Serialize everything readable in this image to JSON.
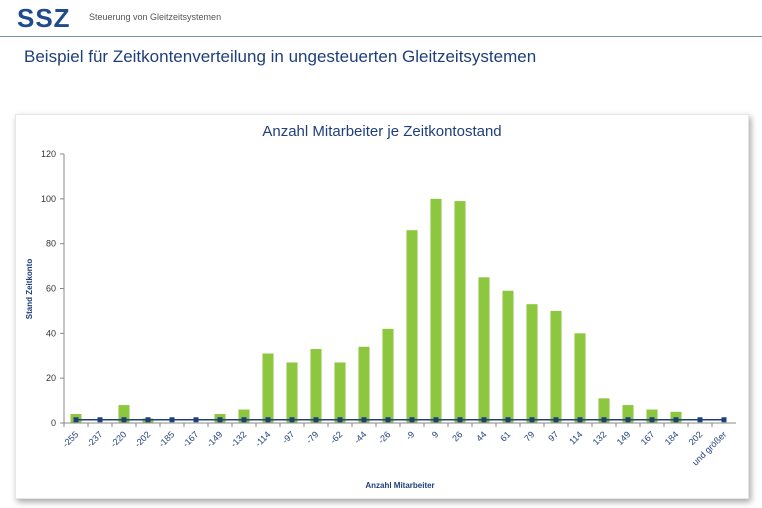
{
  "header": {
    "logo": "SSZ",
    "company": "Steuerung von Gleitzeitsystemen",
    "title": "Beispiel für Zeitkontenverteilung in ungesteuerten Gleitzeitsystemen"
  },
  "chart_data": {
    "type": "bar",
    "title": "Anzahl Mitarbeiter je Zeitkontostand",
    "xlabel": "Anzahl Mitarbeiter",
    "ylabel": "Stand Zeitkonto",
    "ylim": [
      0,
      120
    ],
    "yticks": [
      0,
      20,
      40,
      60,
      80,
      100,
      120
    ],
    "grid": false,
    "legend": "none",
    "categories": [
      "-255",
      "-237",
      "-220",
      "-202",
      "-185",
      "-167",
      "-149",
      "-132",
      "-114",
      "-97",
      "-79",
      "-62",
      "-44",
      "-26",
      "-9",
      "9",
      "26",
      "44",
      "61",
      "79",
      "97",
      "114",
      "132",
      "149",
      "167",
      "184",
      "202",
      "und größer"
    ],
    "series": [
      {
        "color": "#8dc63f",
        "values": [
          4,
          0,
          8,
          2,
          0,
          0,
          4,
          6,
          31,
          27,
          33,
          27,
          34,
          42,
          86,
          100,
          99,
          65,
          59,
          53,
          50,
          40,
          11,
          8,
          6,
          5,
          0,
          0
        ]
      }
    ],
    "marker_series": {
      "color": "#1f3f7a",
      "values": [
        1,
        1,
        1,
        1,
        1,
        1,
        1,
        1,
        1,
        1,
        1,
        1,
        1,
        1,
        1,
        1,
        1,
        1,
        1,
        1,
        1,
        1,
        1,
        1,
        1,
        1,
        1,
        1
      ]
    }
  }
}
